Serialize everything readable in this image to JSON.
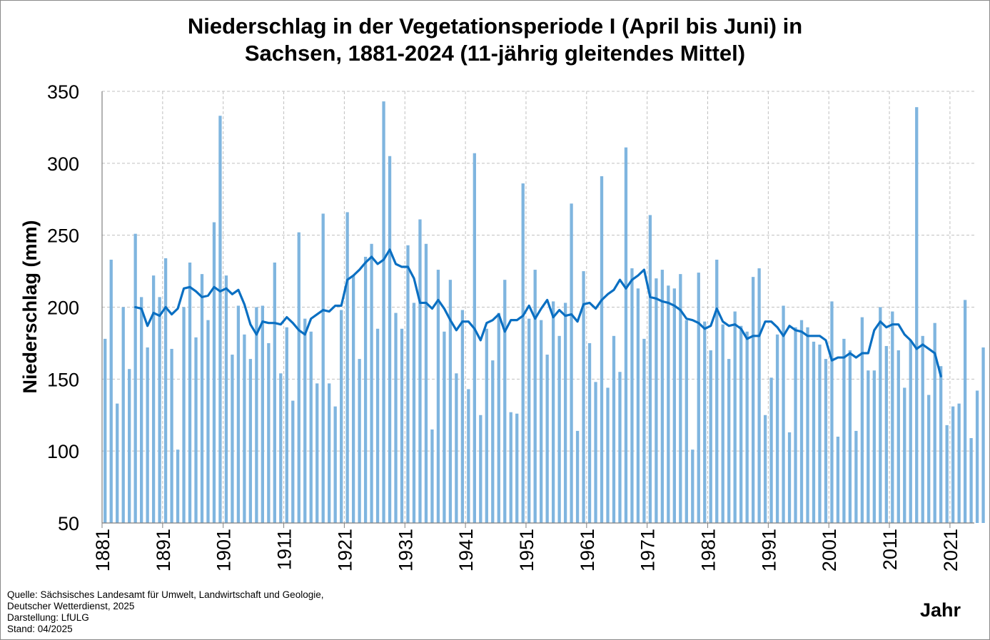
{
  "title_line1": "Niederschlag in der Vegetationsperiode I (April bis Juni) in",
  "title_line2": "Sachsen, 1881-2024 (11-jährig gleitendes Mittel)",
  "source_lines": [
    "Quelle: Sächsisches Landesamt für Umwelt, Landwirtschaft und Geologie,",
    "Deutscher Wetterdienst, 2025",
    "Darstellung: LfULG",
    "Stand: 04/2025"
  ],
  "chart_data": {
    "type": "bar",
    "xlabel": "Jahr",
    "ylabel": "Niederschlag (mm)",
    "ylim": [
      50,
      350
    ],
    "yticks": [
      50,
      100,
      150,
      200,
      250,
      300,
      350
    ],
    "xtick_labels": [
      "1881",
      "1891",
      "1901",
      "1911",
      "1921",
      "1931",
      "1941",
      "1951",
      "1961",
      "1971",
      "1981",
      "1991",
      "2001",
      "2011",
      "2021"
    ],
    "grid": true,
    "colors": {
      "bars": "#7fb5df",
      "line": "#0a6fc2",
      "grid": "#c0c0c0",
      "axis": "#808080"
    },
    "x_start": 1881,
    "series": [
      {
        "kind": "bar",
        "start_year": 1881,
        "values": [
          178,
          233,
          133,
          200,
          157,
          251,
          207,
          172,
          222,
          207,
          234,
          171,
          101,
          200,
          231,
          179,
          223,
          191,
          259,
          333,
          222,
          167,
          201,
          181,
          164,
          200,
          201,
          175,
          231,
          154,
          186,
          135,
          252,
          192,
          183,
          147,
          265,
          147,
          131,
          198,
          266,
          222,
          164,
          235,
          244,
          185,
          343,
          305,
          196,
          185,
          243,
          203,
          261,
          244,
          115,
          226,
          183,
          219,
          154,
          198,
          143,
          307,
          125,
          185,
          163,
          196,
          219,
          127,
          126,
          286,
          192,
          226,
          191,
          167,
          204,
          180,
          203,
          272,
          114,
          225,
          175,
          148,
          291,
          144,
          180,
          155,
          311,
          227,
          213,
          178,
          264,
          220,
          226,
          215,
          213,
          223,
          191,
          101,
          224,
          190,
          170,
          233,
          188,
          164,
          197,
          187,
          183,
          221,
          227,
          125,
          151,
          181,
          201,
          113,
          186,
          191,
          186,
          176,
          174,
          164,
          204,
          110,
          178,
          170,
          114,
          193,
          156,
          156,
          200,
          173,
          197,
          170,
          144,
          177,
          339,
          180,
          139,
          189,
          159,
          118,
          131,
          133,
          205,
          109,
          142,
          172
        ]
      },
      {
        "kind": "line",
        "start_year": 1886,
        "values": [
          200,
          199,
          187,
          196,
          194,
          200,
          195,
          199,
          213,
          214,
          211,
          207,
          208,
          214,
          211,
          213,
          209,
          212,
          202,
          188,
          181,
          190,
          189,
          189,
          188,
          193,
          189,
          184,
          181,
          192,
          195,
          198,
          197,
          201,
          201,
          219,
          222,
          226,
          231,
          235,
          230,
          233,
          240,
          230,
          228,
          228,
          220,
          203,
          203,
          199,
          205,
          199,
          191,
          184,
          190,
          190,
          185,
          177,
          189,
          191,
          195,
          183,
          191,
          191,
          194,
          201,
          192,
          199,
          205,
          193,
          198,
          194,
          195,
          190,
          202,
          203,
          199,
          205,
          209,
          212,
          219,
          213,
          219,
          222,
          226,
          207,
          206,
          204,
          203,
          201,
          198,
          192,
          191,
          189,
          185,
          187,
          199,
          190,
          187,
          188,
          185,
          178,
          180,
          180,
          190,
          190,
          186,
          180,
          187,
          184,
          183,
          180,
          180,
          180,
          177,
          163,
          165,
          165,
          168,
          165,
          168,
          168,
          184,
          190,
          186,
          188,
          188,
          181,
          177,
          171,
          174,
          171,
          168,
          152
        ]
      }
    ]
  }
}
